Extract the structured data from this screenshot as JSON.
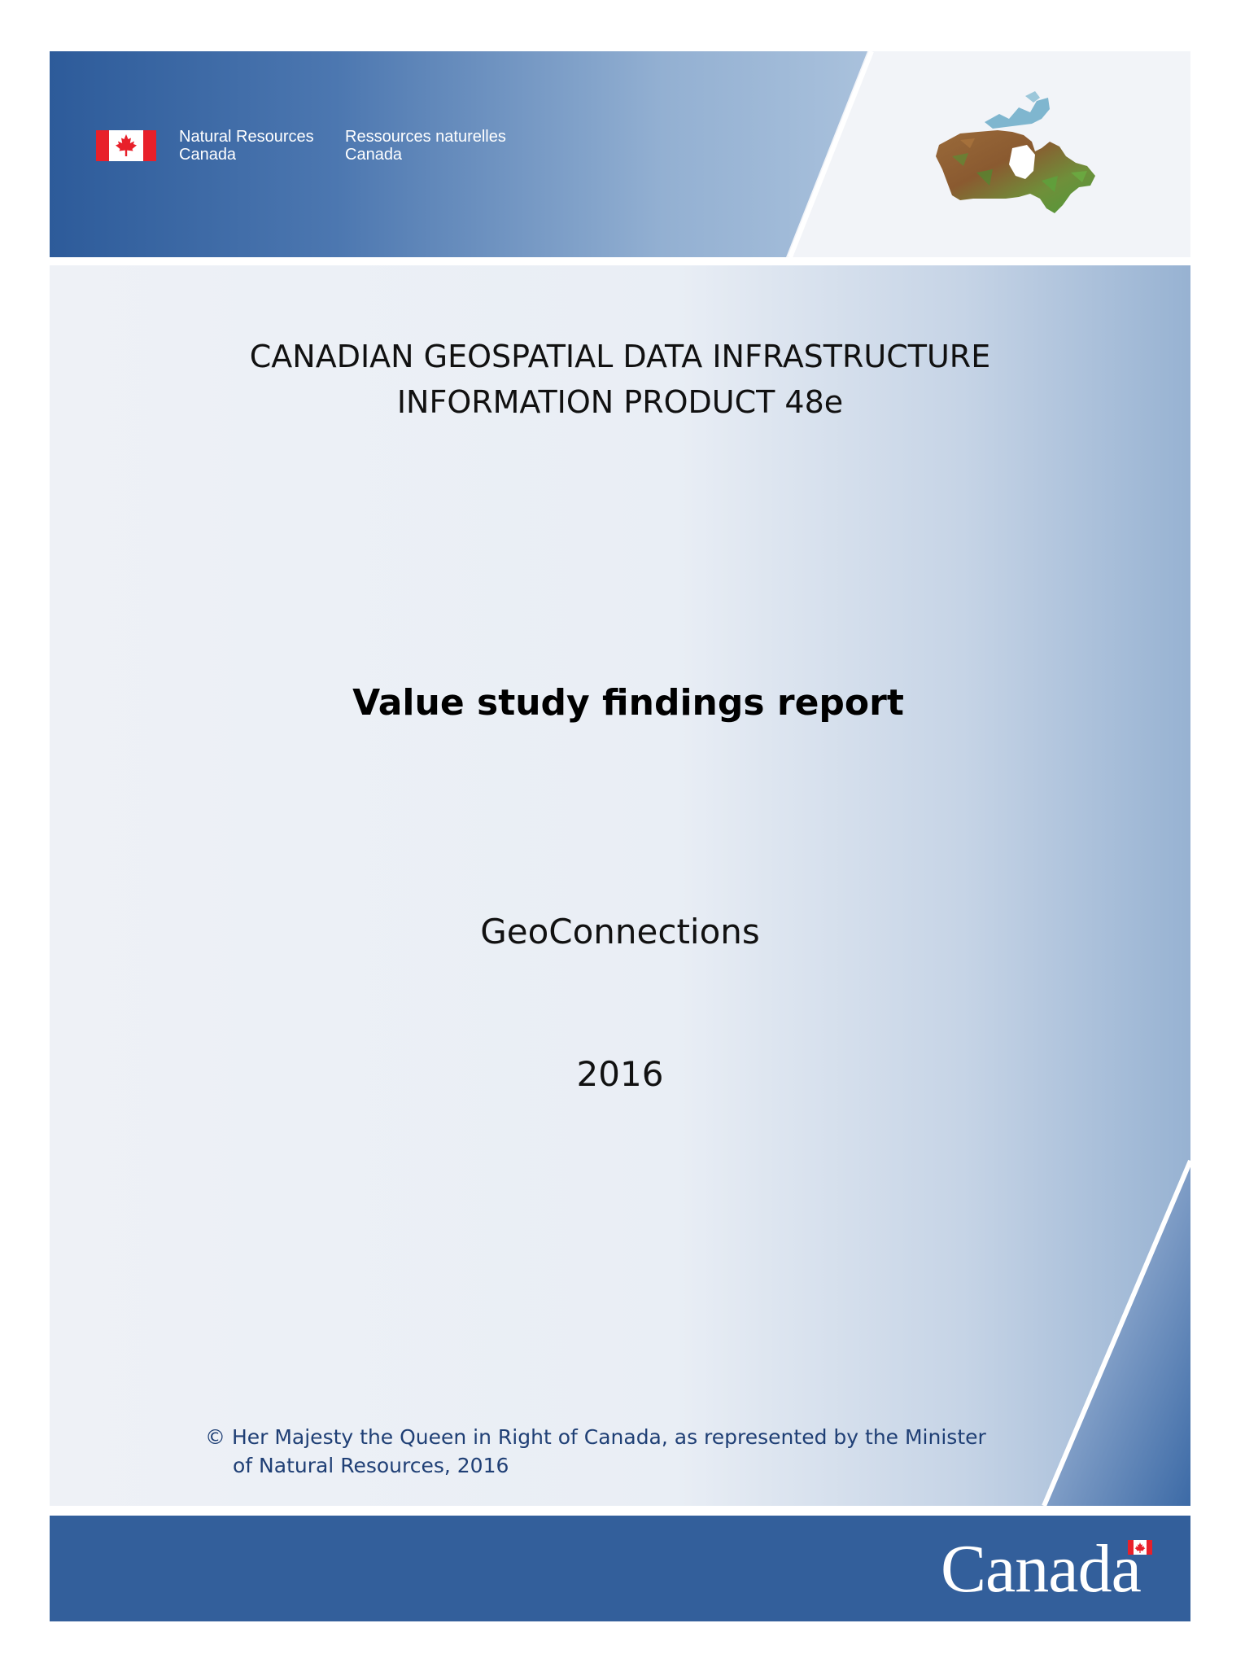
{
  "header": {
    "department_en_line1": "Natural Resources",
    "department_en_line2": "Canada",
    "department_fr_line1": "Ressources naturelles",
    "department_fr_line2": "Canada"
  },
  "cover": {
    "series_line1": "CANADIAN GEOSPATIAL DATA INFRASTRUCTURE",
    "series_line2": "INFORMATION PRODUCT 48e",
    "title": "Value study findings report",
    "organization": "GeoConnections",
    "year": "2016",
    "copyright_line1": "© Her Majesty the Queen in Right of Canada, as represented by the Minister",
    "copyright_line2": "of Natural Resources, 2016"
  },
  "footer": {
    "wordmark": "Canada"
  },
  "icons": [
    "canada-flag-icon",
    "canada-map-image",
    "canada-wordmark-flag-icon"
  ],
  "colors": {
    "header_blue": "#2f5d9b",
    "footer_blue": "#335f9b",
    "flag_red": "#e8202a",
    "copyright_text": "#1f3f75"
  }
}
